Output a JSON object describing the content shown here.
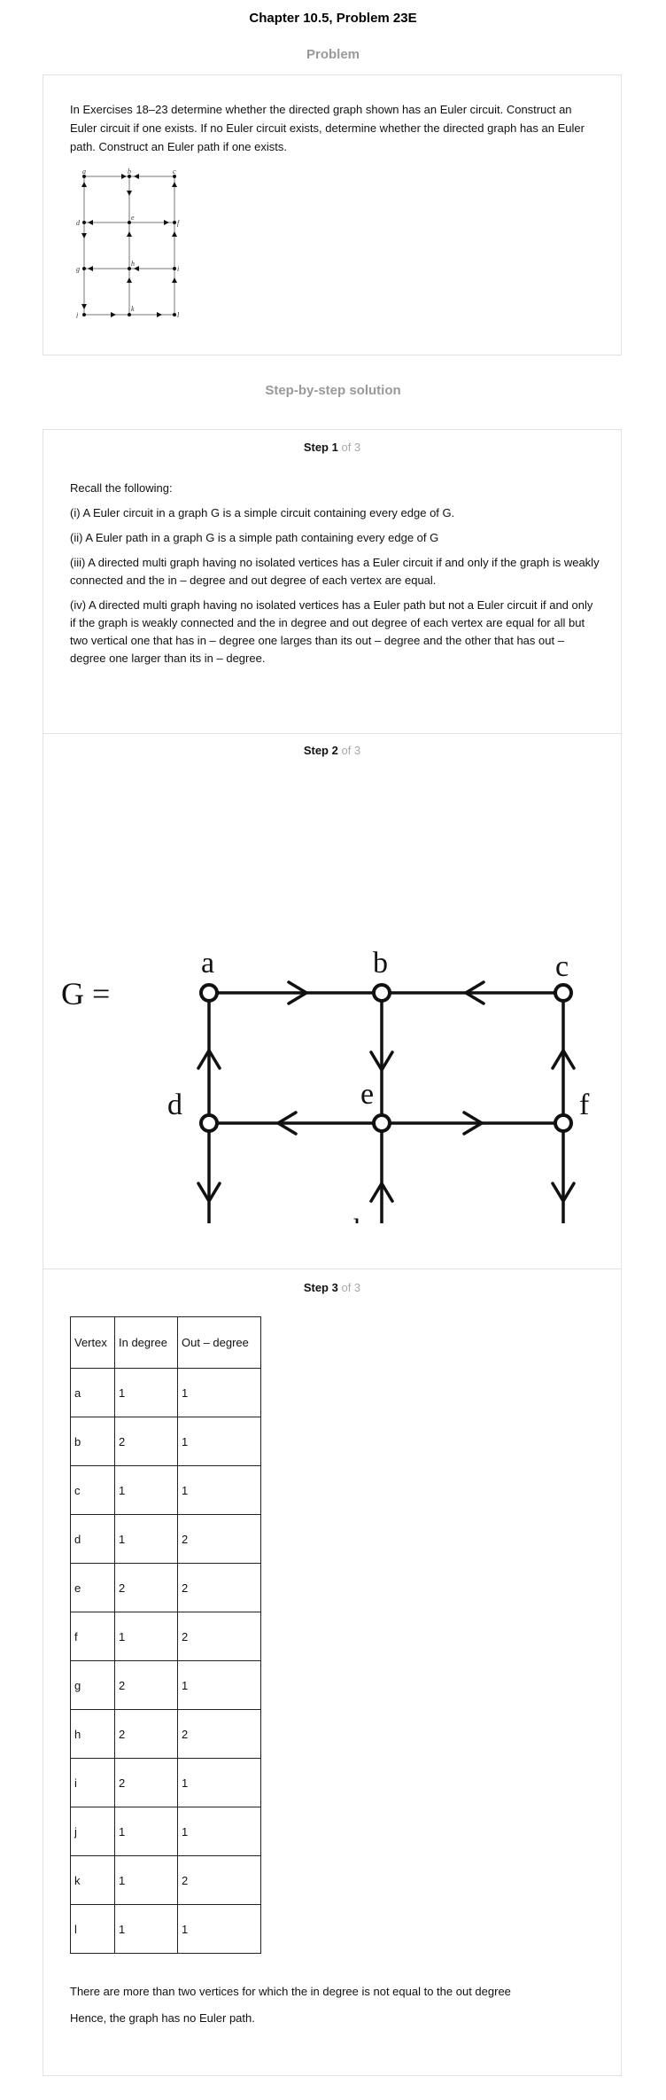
{
  "page_title": "Chapter 10.5, Problem 23E",
  "problem": {
    "heading": "Problem",
    "text": "In Exercises 18–23 determine whether the directed graph shown has an Euler circuit. Construct an Euler circuit if one exists. If no Euler circuit exists, determine whether the directed graph has an Euler path. Construct an Euler path if one exists."
  },
  "solution": {
    "heading": "Step-by-step solution",
    "steps": [
      {
        "label": "Step 1",
        "of": "of 3"
      },
      {
        "label": "Step 2",
        "of": "of 3"
      },
      {
        "label": "Step 3",
        "of": "of 3"
      }
    ],
    "step1": {
      "intro": "Recall the following:",
      "points": [
        "(i) A Euler circuit in a graph G is a simple circuit containing every edge of G.",
        "(ii) A Euler path in a graph G is a simple path containing every edge of G",
        "(iii) A directed multi graph having no isolated vertices has a Euler circuit if and only if the graph is weakly connected and the in – degree and out degree of each vertex are equal.",
        "(iv) A directed multi graph having no isolated vertices has a Euler path but not a Euler circuit if and only if the graph is weakly connected and the in degree and out degree of each vertex are equal for all but two vertical one that has in – degree one larges than its out – degree and the other that has out – degree one larger than its in – degree."
      ]
    },
    "step2": {
      "graph_label": "G =",
      "vertices": [
        "a",
        "b",
        "c",
        "d",
        "e",
        "f",
        "g",
        "h",
        "i",
        "j",
        "k",
        "l"
      ]
    },
    "step3": {
      "table": {
        "headers": [
          "Vertex",
          "In degree",
          "Out – degree"
        ],
        "rows": [
          [
            "a",
            "1",
            "1"
          ],
          [
            "b",
            "2",
            "1"
          ],
          [
            "c",
            "1",
            "1"
          ],
          [
            "d",
            "1",
            "2"
          ],
          [
            "e",
            "2",
            "2"
          ],
          [
            "f",
            "1",
            "2"
          ],
          [
            "g",
            "2",
            "1"
          ],
          [
            "h",
            "2",
            "2"
          ],
          [
            "i",
            "2",
            "1"
          ],
          [
            "j",
            "1",
            "1"
          ],
          [
            "k",
            "1",
            "2"
          ],
          [
            "l",
            "1",
            "1"
          ]
        ]
      },
      "conclusion": [
        "There are more than two vertices for which the in degree is not equal to the out degree",
        "Hence, the graph has no Euler path."
      ]
    }
  }
}
